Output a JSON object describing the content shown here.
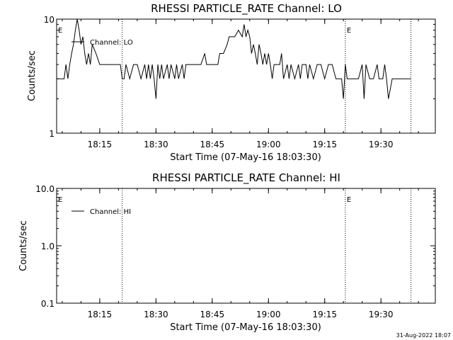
{
  "footer_date": "31-Aug-2022 18:07",
  "chart_data": [
    {
      "type": "line",
      "title": "RHESSI PARTICLE_RATE Channel: LO",
      "xlabel": "Start Time (07-May-16 18:03:30)",
      "ylabel": "Counts/sec",
      "yscale": "log",
      "ylim": [
        1,
        10
      ],
      "yticks": [
        {
          "value": 1,
          "label": "1"
        },
        {
          "value": 10,
          "label": "10"
        }
      ],
      "xlim": [
        "18:03:30",
        "19:44:30"
      ],
      "xticks": [
        "18:15",
        "18:30",
        "18:45",
        "19:00",
        "19:15",
        "19:30"
      ],
      "vlines": [
        "18:21:00",
        "19:20:30",
        "19:38:00"
      ],
      "markers": [
        {
          "time": "18:03:30",
          "label": "E"
        },
        {
          "time": "19:20:30",
          "label": "E"
        }
      ],
      "legend": {
        "label": "Channel: LO",
        "position": "top-left"
      },
      "series": [
        {
          "x": [
            "18:03:30",
            "18:04:30",
            "18:05:30",
            "18:06:00",
            "18:06:30",
            "18:07:00",
            "18:07:30",
            "18:08:00",
            "18:08:30",
            "18:09:00",
            "18:09:30",
            "18:10:00",
            "18:10:30",
            "18:11:00",
            "18:11:30",
            "18:12:00",
            "18:12:30",
            "18:13:00",
            "18:14:00",
            "18:15:00",
            "18:16:00",
            "18:17:00",
            "18:18:00",
            "18:19:00",
            "18:20:00",
            "18:20:30",
            "18:21:00",
            "18:21:30",
            "18:22:00",
            "18:23:00",
            "18:24:00",
            "18:25:00",
            "18:26:00",
            "18:27:00",
            "18:27:30",
            "18:28:00",
            "18:28:30",
            "18:29:00",
            "18:29:30",
            "18:30:00",
            "18:30:30",
            "18:31:00",
            "18:31:30",
            "18:32:00",
            "18:33:00",
            "18:33:30",
            "18:34:00",
            "18:35:00",
            "18:35:30",
            "18:36:00",
            "18:37:00",
            "18:37:30",
            "18:38:00",
            "18:39:00",
            "18:39:30",
            "18:40:00",
            "18:41:00",
            "18:42:00",
            "18:43:00",
            "18:43:30",
            "18:44:00",
            "18:45:00",
            "18:46:00",
            "18:46:30",
            "18:47:00",
            "18:48:00",
            "18:49:00",
            "18:49:30",
            "18:50:00",
            "18:51:00",
            "18:52:00",
            "18:53:00",
            "18:53:30",
            "18:54:00",
            "18:54:30",
            "18:55:00",
            "18:55:30",
            "18:56:00",
            "18:56:30",
            "18:57:00",
            "18:57:30",
            "18:58:00",
            "18:58:30",
            "18:59:00",
            "18:59:30",
            "19:00:00",
            "19:00:30",
            "19:01:00",
            "19:01:30",
            "19:02:00",
            "19:02:30",
            "19:03:00",
            "19:03:30",
            "19:04:00",
            "19:05:00",
            "19:05:30",
            "19:06:00",
            "19:07:00",
            "19:08:00",
            "19:08:30",
            "19:09:00",
            "19:10:00",
            "19:10:30",
            "19:11:00",
            "19:12:00",
            "19:13:00",
            "19:14:00",
            "19:15:00",
            "19:16:00",
            "19:17:00",
            "19:18:00",
            "19:19:00",
            "19:19:30",
            "19:20:00",
            "19:20:30",
            "19:21:00",
            "19:22:00",
            "19:23:00",
            "19:24:00",
            "19:25:00",
            "19:25:30",
            "19:26:00",
            "19:27:00",
            "19:27:30",
            "19:28:00",
            "19:29:00",
            "19:29:30",
            "19:30:00",
            "19:30:30",
            "19:31:00",
            "19:31:30",
            "19:32:00",
            "19:33:00",
            "19:33:30",
            "19:34:00",
            "19:34:30",
            "19:35:00",
            "19:36:00",
            "19:37:00",
            "19:38:00"
          ],
          "y": [
            3,
            3,
            3,
            4,
            3,
            4,
            5,
            6,
            8,
            10,
            8,
            6,
            7,
            5,
            4,
            5,
            4,
            6,
            5,
            4,
            4,
            4,
            4,
            4,
            4,
            4,
            3,
            3,
            4,
            3,
            4,
            4,
            3,
            4,
            3,
            4,
            3,
            4,
            3,
            2,
            4,
            3,
            4,
            3,
            4,
            3,
            4,
            3,
            4,
            3,
            4,
            3,
            4,
            4,
            4,
            4,
            4,
            4,
            5,
            4,
            4,
            4,
            4,
            4,
            5,
            5,
            6,
            7,
            7,
            7,
            8,
            7,
            9,
            7,
            8,
            7,
            5,
            6,
            5,
            4,
            6,
            5,
            4,
            5,
            4,
            5,
            4,
            3,
            4,
            4,
            4,
            4,
            5,
            3,
            4,
            3,
            4,
            3,
            4,
            3,
            4,
            4,
            3,
            4,
            3,
            4,
            4,
            3,
            4,
            4,
            3,
            3,
            3,
            2,
            4,
            3,
            3,
            3,
            3,
            4,
            2,
            4,
            3,
            3,
            3,
            4,
            3,
            3,
            3,
            4,
            3,
            2,
            3,
            3,
            3,
            3,
            3,
            3,
            3,
            3
          ]
        }
      ]
    },
    {
      "type": "line",
      "title": "RHESSI PARTICLE_RATE Channel: HI",
      "xlabel": "Start Time (07-May-16 18:03:30)",
      "ylabel": "Counts/sec",
      "yscale": "log",
      "ylim": [
        0.1,
        10
      ],
      "yticks": [
        {
          "value": 0.1,
          "label": "0.1"
        },
        {
          "value": 1,
          "label": "1.0"
        },
        {
          "value": 10,
          "label": "10.0"
        }
      ],
      "xlim": [
        "18:03:30",
        "19:44:30"
      ],
      "xticks": [
        "18:15",
        "18:30",
        "18:45",
        "19:00",
        "19:15",
        "19:30"
      ],
      "vlines": [
        "18:21:00",
        "19:20:30",
        "19:38:00"
      ],
      "markers": [
        {
          "time": "18:03:30",
          "label": "E"
        },
        {
          "time": "19:20:30",
          "label": "E"
        }
      ],
      "legend": {
        "label": "Channel: HI",
        "position": "top-left"
      },
      "series": []
    }
  ]
}
